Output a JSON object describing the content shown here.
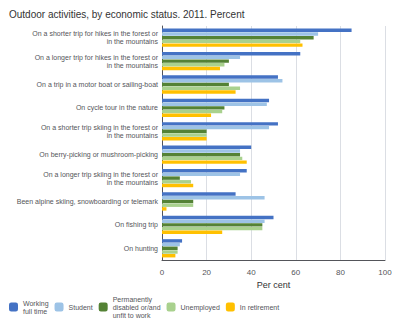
{
  "chart_data": {
    "type": "bar",
    "orientation": "horizontal",
    "title": "Outdoor activities, by economic status. 2011. Percent",
    "categories": [
      "On a shorter trip for hikes in the forest or\nin the mountains",
      "On a longer trip for hikes in the forest or\nin the mountains",
      "On a trip in a motor boat or sailing-boat",
      "On cycle tour in the nature",
      "On a shorter trip skiing in the forest or\nin the mountains",
      "On berry-picking or mushroom-picking",
      "On a longer trip skiing in the forest or\nin the mountains",
      "Been alpine skiing, snowboarding or telemark",
      "On fishing trip",
      "On hunting"
    ],
    "series": [
      {
        "name": "Working\nfull time",
        "color": "#4472C4",
        "values": [
          85,
          62,
          52,
          48,
          52,
          40,
          38,
          33,
          50,
          9
        ]
      },
      {
        "name": "Student",
        "color": "#9DC3E6",
        "values": [
          70,
          35,
          54,
          47,
          48,
          35,
          35,
          46,
          46,
          8
        ]
      },
      {
        "name": "Permanently\ndisabled or/and\nunfit to work",
        "color": "#548235",
        "values": [
          68,
          30,
          30,
          28,
          20,
          35,
          8,
          14,
          45,
          7
        ]
      },
      {
        "name": "Unemployed",
        "color": "#A9D18E",
        "values": [
          62,
          28,
          35,
          27,
          20,
          36,
          13,
          14,
          45,
          7
        ]
      },
      {
        "name": "In retirement",
        "color": "#FFC000",
        "values": [
          63,
          26,
          33,
          22,
          20,
          38,
          14,
          2,
          27,
          6
        ]
      }
    ],
    "xlabel": "Per cent",
    "xlim": [
      0,
      100
    ],
    "xticks": [
      0,
      20,
      40,
      60,
      80,
      100
    ],
    "grid": true,
    "legend": "lower left"
  }
}
